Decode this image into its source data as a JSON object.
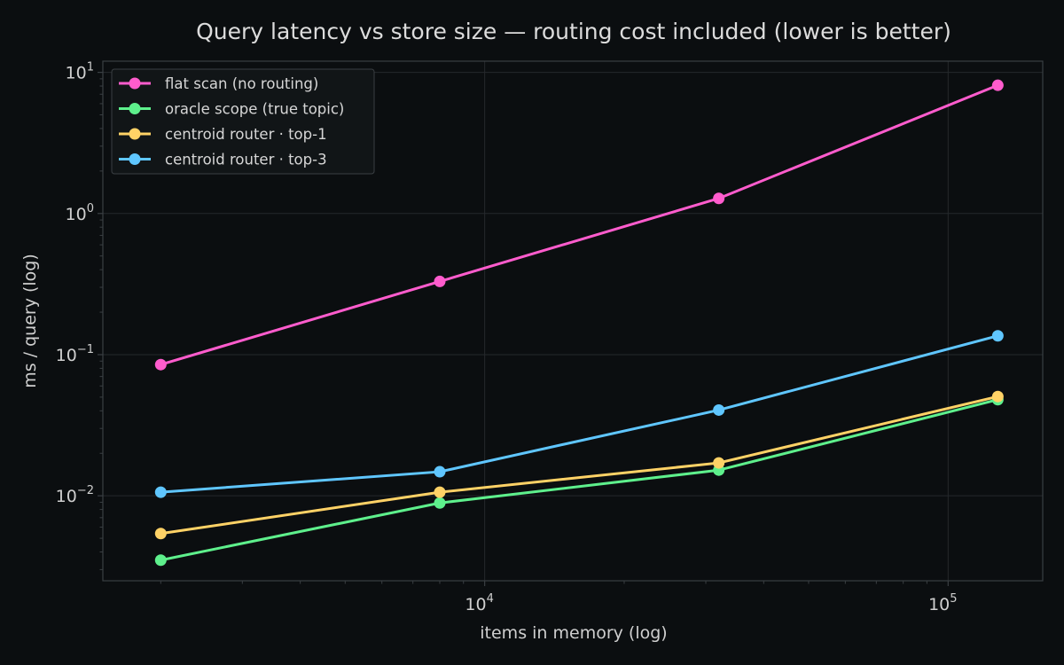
{
  "chart_data": {
    "type": "line",
    "title": "Query latency vs store size — routing cost included (lower is better)",
    "xlabel": "items in memory (log)",
    "ylabel": "ms / query (log)",
    "x_scale": "log",
    "y_scale": "log",
    "xlim": [
      1500,
      160000
    ],
    "ylim": [
      0.0025,
      12
    ],
    "x_ticks": [
      {
        "value": 10000,
        "base": "10",
        "exp": "4"
      },
      {
        "value": 100000,
        "base": "10",
        "exp": "5"
      }
    ],
    "y_ticks": [
      {
        "value": 0.01,
        "base": "10",
        "exp": "−2"
      },
      {
        "value": 0.1,
        "base": "10",
        "exp": "−1"
      },
      {
        "value": 1,
        "base": "10",
        "exp": "0"
      },
      {
        "value": 10,
        "base": "10",
        "exp": "1"
      }
    ],
    "grid": true,
    "legend_position": "top-left",
    "x": [
      2000,
      8000,
      32000,
      128000
    ],
    "series": [
      {
        "name": "flat scan (no routing)",
        "color": "#ff5ccd",
        "values": [
          0.085,
          0.33,
          1.28,
          8.1
        ]
      },
      {
        "name": "oracle scope (true topic)",
        "color": "#5ef08c",
        "values": [
          0.0035,
          0.0089,
          0.0152,
          0.048
        ]
      },
      {
        "name": "centroid router · top-1",
        "color": "#ffd266",
        "values": [
          0.0054,
          0.0106,
          0.0171,
          0.0505
        ]
      },
      {
        "name": "centroid router · top-3",
        "color": "#5fc6ff",
        "values": [
          0.0106,
          0.0148,
          0.0405,
          0.136
        ]
      }
    ]
  },
  "colors": {
    "background": "#0b0e10",
    "grid": "#25292c",
    "axes": "#3a3f43",
    "text": "#cfcfcf",
    "legend_bg": "#111517",
    "legend_border": "#3a3f43"
  }
}
